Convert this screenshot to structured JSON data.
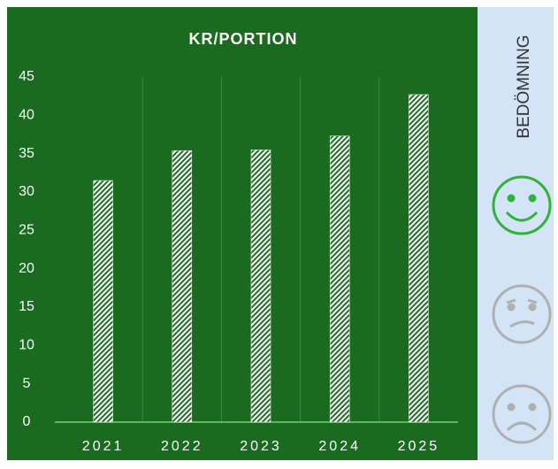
{
  "chart_data": {
    "type": "bar",
    "title": "KR/PORTION",
    "categories": [
      "2021",
      "2022",
      "2023",
      "2024",
      "2025"
    ],
    "values": [
      31.5,
      35.4,
      35.5,
      37.3,
      42.7
    ],
    "color": "#ffffff",
    "ylim": [
      0,
      45
    ],
    "yticks": [
      0,
      5,
      10,
      15,
      20,
      25,
      30,
      35,
      40,
      45
    ]
  },
  "side_panel": {
    "label": "BEDÖMNING"
  }
}
